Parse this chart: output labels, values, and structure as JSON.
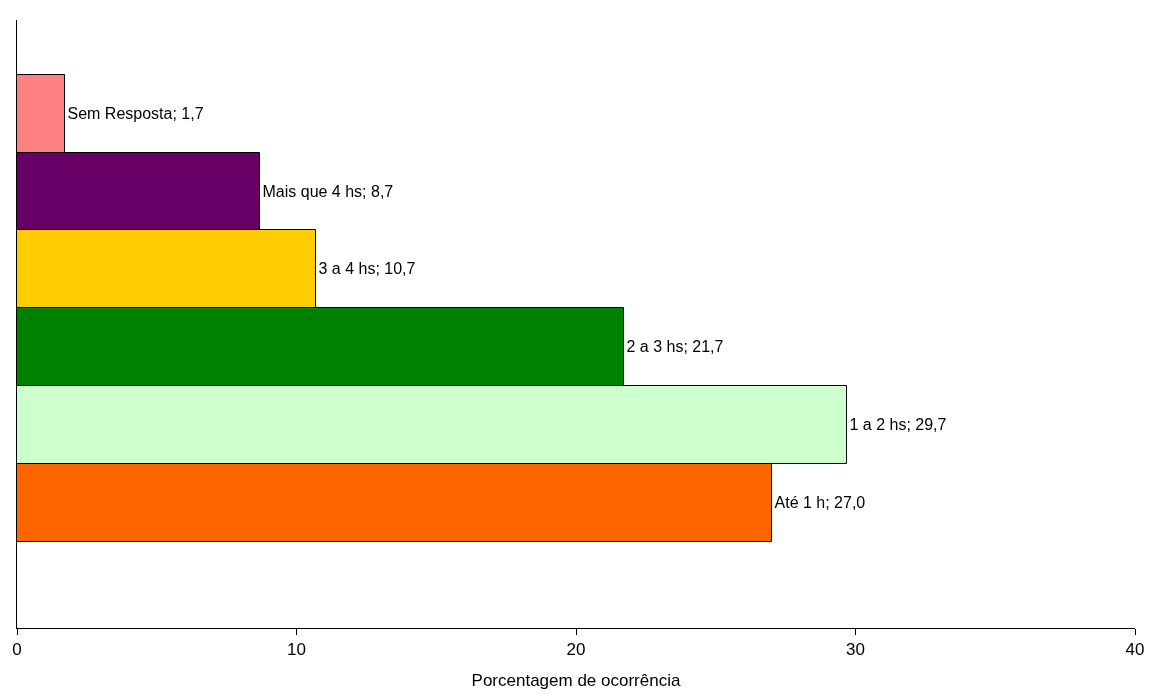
{
  "chart_data": {
    "type": "bar",
    "orientation": "horizontal",
    "xlabel": "Porcentagem de ocorrência",
    "categories": [
      null,
      null,
      null,
      null,
      null,
      null
    ],
    "values": [
      1.7,
      8.7,
      10.7,
      21.7,
      29.7,
      27.0
    ],
    "value_labels": [
      "Sem Resposta; 1,7",
      "Mais que 4 hs; 8,7",
      "3 a 4 hs; 10,7",
      "2 a 3 hs; 21,7",
      "1 a 2 hs; 29,7",
      "Até 1 h; 27,0"
    ],
    "colors": [
      "#ff8080",
      "#660066",
      "#ffcc00",
      "#008000",
      "#ccffcc",
      "#ff6600"
    ],
    "xlim": [
      0,
      40
    ],
    "xticks": [
      0,
      10,
      20,
      30,
      40
    ],
    "tick_labels": "x"
  }
}
